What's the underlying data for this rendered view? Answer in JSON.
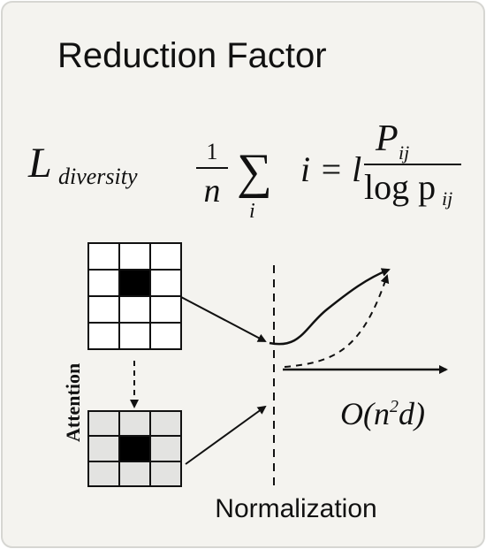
{
  "title": "Reduction Factor",
  "formula": {
    "L": "L",
    "subscript": "diversity",
    "fraction_num": "1",
    "fraction_den": "n",
    "sum": "∑",
    "sum_index": "i",
    "middle": "i = l",
    "numerator": "P",
    "numerator_sub": "ij",
    "denominator": "log p",
    "denominator_sub": "ij"
  },
  "labels": {
    "attention": "Attention",
    "complexity": "O(n",
    "complexity_exp": "2",
    "complexity_tail": "d)",
    "normalization": "Normalization"
  }
}
